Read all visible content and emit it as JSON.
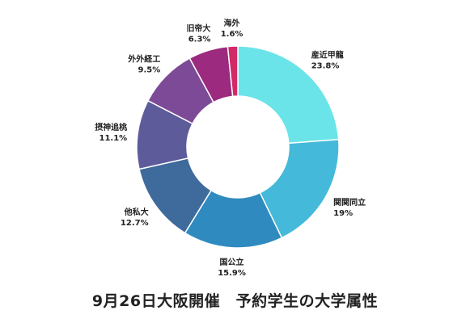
{
  "chart_data": {
    "type": "pie",
    "donut": true,
    "title": "9月26日大阪開催　予約学生の大学属性",
    "slices": [
      {
        "name": "産近甲龍",
        "label": "23.8%",
        "value": 23.8,
        "color": "#6ae4e8"
      },
      {
        "name": "関関同立",
        "label": "19%",
        "value": 19.0,
        "color": "#45b9da"
      },
      {
        "name": "国公立",
        "label": "15.9%",
        "value": 15.9,
        "color": "#2f8bbf"
      },
      {
        "name": "他私大",
        "label": "12.7%",
        "value": 12.7,
        "color": "#3f6a9c"
      },
      {
        "name": "摂神追桃",
        "label": "11.1%",
        "value": 11.1,
        "color": "#5e5b9b"
      },
      {
        "name": "外外経工",
        "label": "9.5%",
        "value": 9.5,
        "color": "#7d4a97"
      },
      {
        "name": "旧帝大",
        "label": "6.3%",
        "value": 6.3,
        "color": "#9c2a7e"
      },
      {
        "name": "海外",
        "label": "1.6%",
        "value": 1.6,
        "color": "#d22a67"
      }
    ],
    "start": "12 o'clock",
    "direction": "clockwise",
    "legend": "none"
  }
}
